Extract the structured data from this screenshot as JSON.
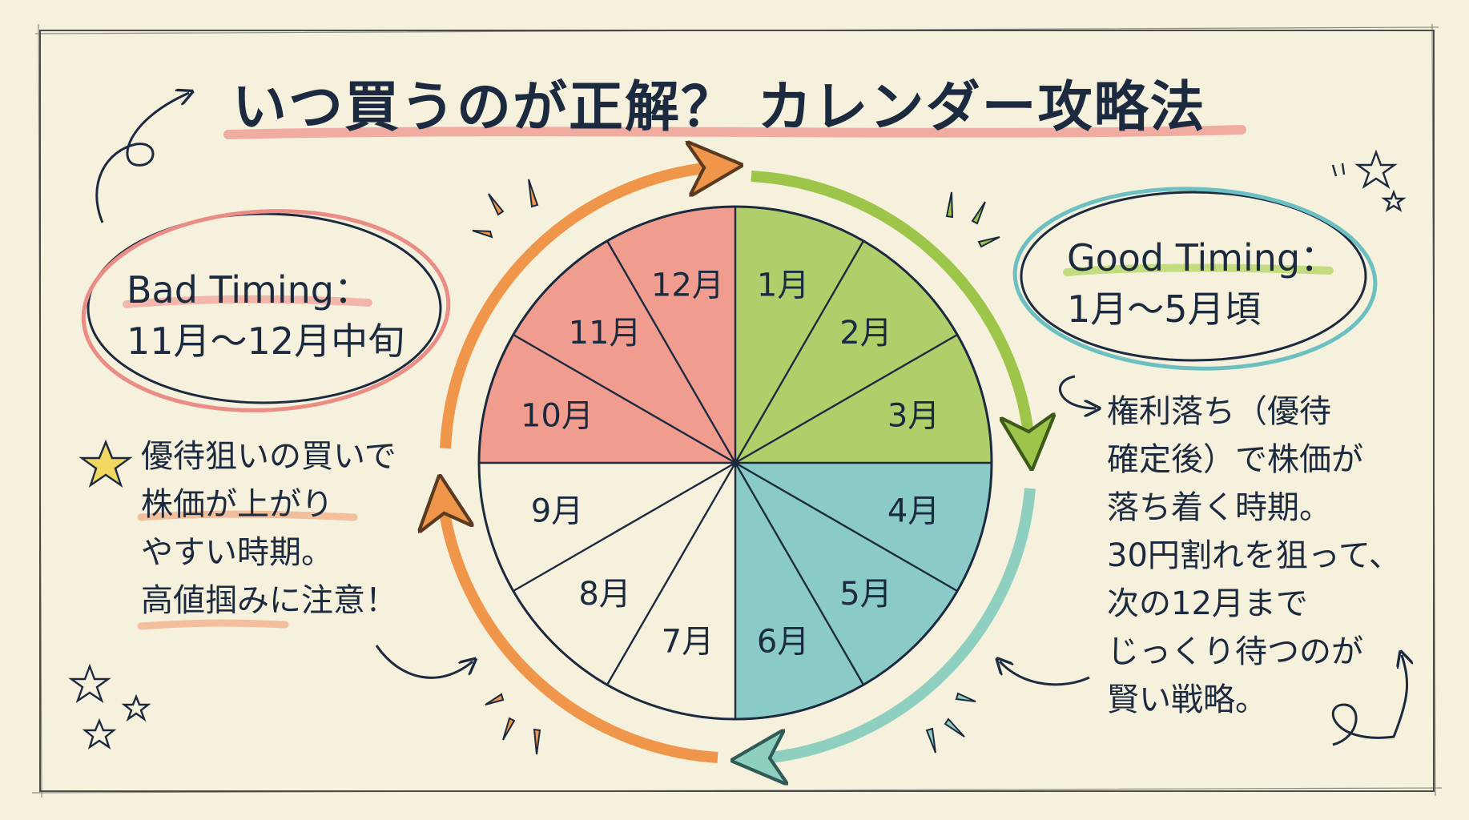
{
  "title": "いつ買うのが正解？ カレンダー攻略法",
  "bad": {
    "heading": "Bad Timing：",
    "period": "11月〜12月中旬",
    "note_lines": [
      "優待狙いの買いで",
      "株価が上がり",
      "やすい時期。",
      "高値掴みに注意！"
    ]
  },
  "good": {
    "heading": "Good Timing：",
    "period": "1月〜5月頃",
    "note_lines": [
      "権利落ち（優待",
      "確定後）で株価が",
      "落ち着く時期。",
      "30円割れを狙って、",
      "次の12月まで",
      "じっくり待つのが",
      "賢い戦略。"
    ]
  },
  "wheel": {
    "months": [
      {
        "label": "1月",
        "zone": "good-green"
      },
      {
        "label": "2月",
        "zone": "good-green"
      },
      {
        "label": "3月",
        "zone": "good-green"
      },
      {
        "label": "4月",
        "zone": "good-teal"
      },
      {
        "label": "5月",
        "zone": "good-teal"
      },
      {
        "label": "6月",
        "zone": "good-teal"
      },
      {
        "label": "7月",
        "zone": "neutral"
      },
      {
        "label": "8月",
        "zone": "neutral"
      },
      {
        "label": "9月",
        "zone": "neutral"
      },
      {
        "label": "10月",
        "zone": "bad"
      },
      {
        "label": "11月",
        "zone": "bad"
      },
      {
        "label": "12月",
        "zone": "bad"
      }
    ]
  },
  "colors": {
    "background": "#f6f1dc",
    "bad": "#ee8478",
    "good_green": "#9cc54a",
    "good_teal": "#6cc0c2",
    "arrow_orange": "#f0964a",
    "ink": "#1c2a40",
    "bad_underline": "#f3a7a0",
    "good_underline": "#b9d86e",
    "note_underline": "#f2b38e"
  }
}
